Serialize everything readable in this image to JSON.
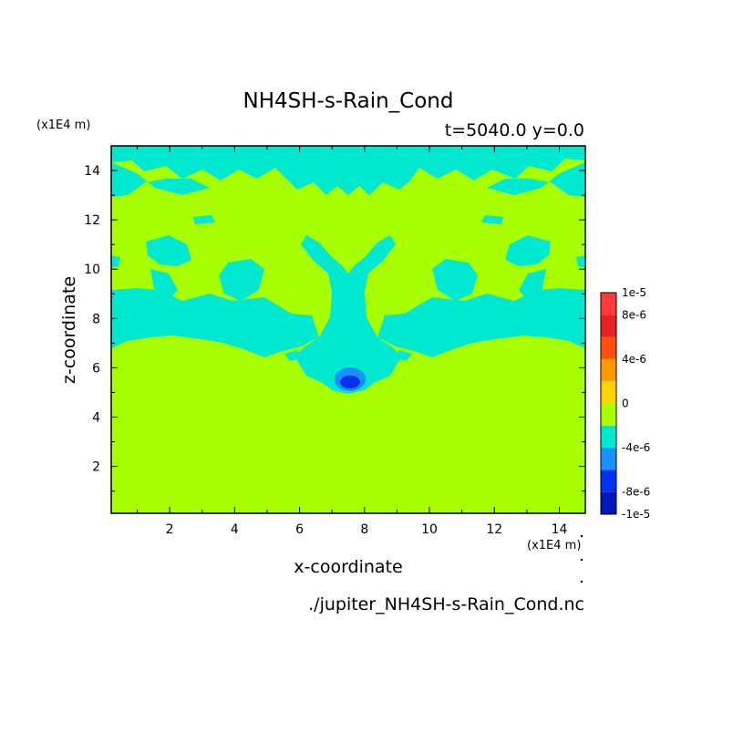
{
  "chart_data": {
    "type": "heatmap",
    "title": "NH4SH-s-Rain_Cond",
    "subtitle": "t=5040.0 y=0.0",
    "xlabel": "x-coordinate",
    "ylabel": "z-coordinate",
    "x_unit": "(x1E4 m)",
    "y_unit": "(x1E4 m)",
    "xlim": [
      0.2,
      14.8
    ],
    "ylim": [
      0.1,
      15.0
    ],
    "x_ticks": [
      2,
      4,
      6,
      8,
      10,
      12,
      14
    ],
    "y_ticks": [
      2,
      4,
      6,
      8,
      10,
      12,
      14
    ],
    "x_tick_labels": [
      "2",
      "4",
      "6",
      "8",
      "10",
      "12",
      "14"
    ],
    "y_tick_labels": [
      "2",
      "4",
      "6",
      "8",
      "10",
      "12",
      "14"
    ],
    "footer": "./jupiter_NH4SH-s-Rain_Cond.nc",
    "colorbar": {
      "levels": [
        -1e-05,
        -8e-06,
        -6e-06,
        -4e-06,
        -2e-06,
        0,
        2e-06,
        4e-06,
        6e-06,
        8e-06,
        1e-05
      ],
      "colors": [
        "#0018b8",
        "#0030f0",
        "#1a90ff",
        "#00e8d0",
        "#a8ff00",
        "#ffd400",
        "#ff9a00",
        "#ff5010",
        "#e82020",
        "#ff3a3a"
      ],
      "labels": [
        "1e-5",
        "8e-6",
        "4e-6",
        "0",
        "-4e-6",
        "-8e-6",
        "-1e-5"
      ]
    },
    "background_value": 0,
    "regions_description_values": {
      "upper_band_value": -2e-06,
      "core_value": -6e-06
    }
  }
}
